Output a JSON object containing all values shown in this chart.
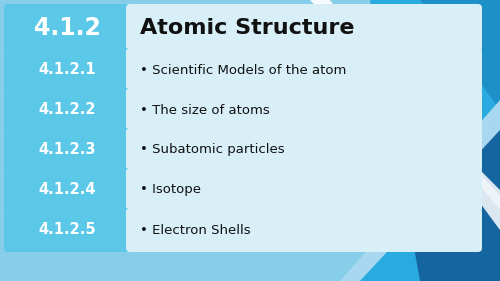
{
  "title_code": "4.1.2",
  "title_text": "Atomic Structure",
  "rows": [
    {
      "code": "4.1.2.1",
      "text": "Scientific Models of the atom"
    },
    {
      "code": "4.1.2.2",
      "text": "The size of atoms"
    },
    {
      "code": "4.1.2.3",
      "text": "Subatomic particles"
    },
    {
      "code": "4.1.2.4",
      "text": "Isotope"
    },
    {
      "code": "4.1.2.5",
      "text": "Electron Shells"
    }
  ],
  "bg_color": "#87CEEB",
  "blue_box_color": "#5BC8E8",
  "light_row_color": "#D8EFF8",
  "text_color_white": "#ffffff",
  "text_color_dark": "#111111",
  "poly_dark_blue": "#1565A0",
  "poly_mid_blue": "#1E90C8",
  "poly_light_blue": "#29ABE2",
  "poly_pale_blue": "#A8D8F0",
  "poly_white": "#ffffff"
}
